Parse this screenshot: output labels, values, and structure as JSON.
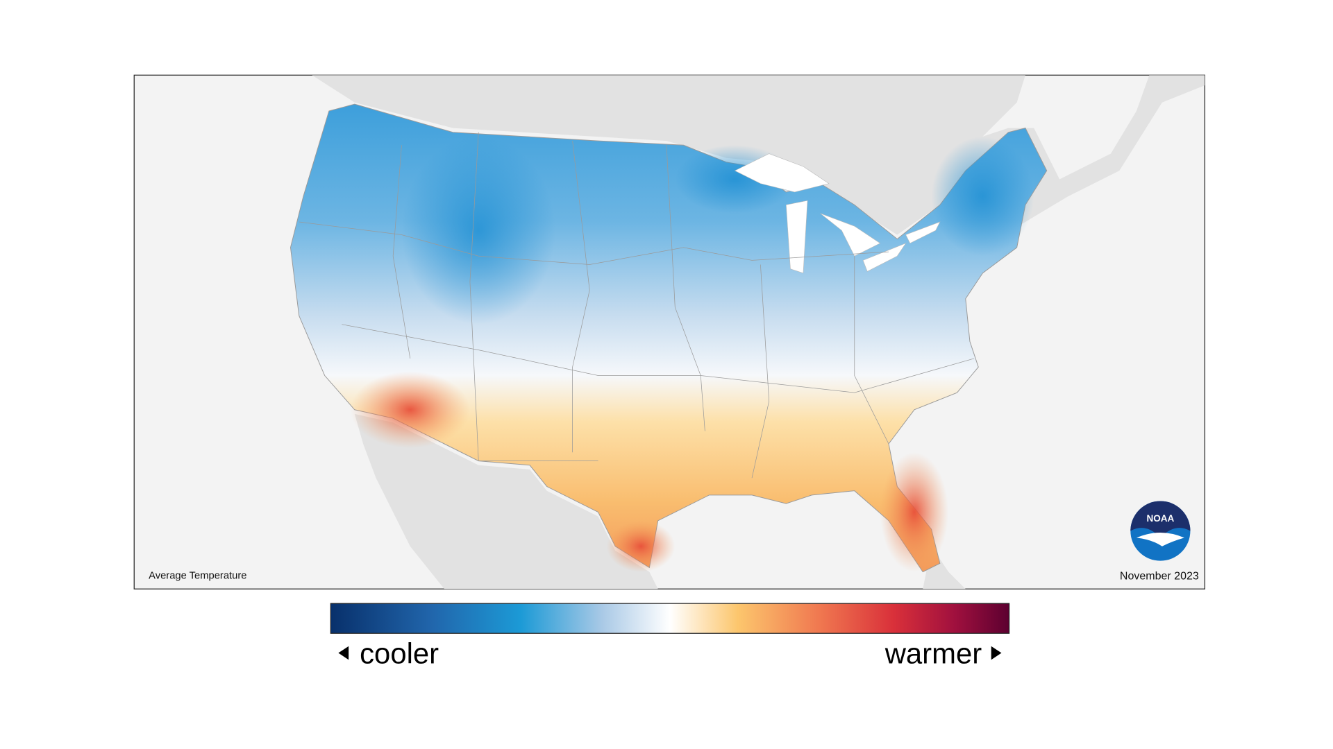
{
  "map": {
    "label": "Average Temperature",
    "date": "November 2023",
    "logo": "NOAA"
  },
  "legend": {
    "low_label": "cooler",
    "high_label": "warmer"
  }
}
